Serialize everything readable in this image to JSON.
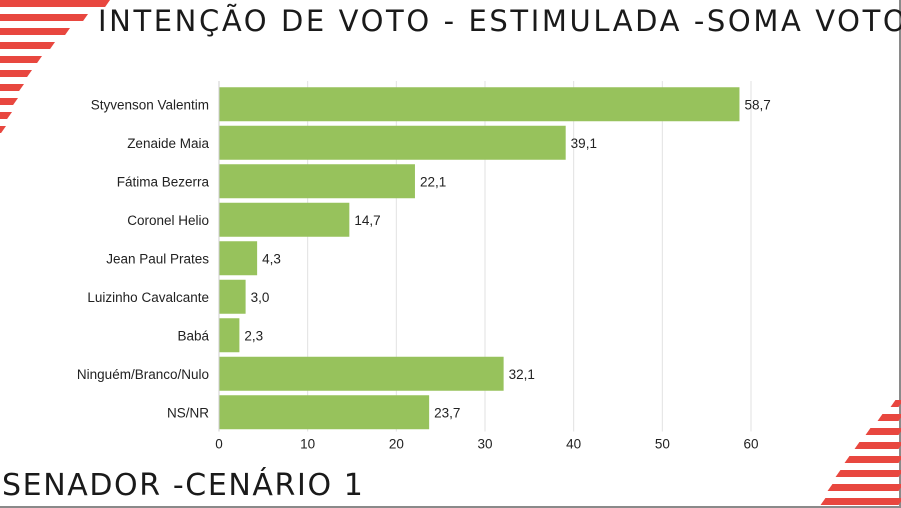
{
  "header": {
    "title": "INTENÇÃO DE VOTO - ESTIMULADA -SOMA VOTOS"
  },
  "footer": {
    "title": "SENADOR -CENÁRIO 1"
  },
  "colors": {
    "bar": "#97c25c",
    "accent": "#e8473f",
    "grid": "#e2e2e2"
  },
  "chart_data": {
    "type": "bar",
    "orientation": "horizontal",
    "title": "INTENÇÃO DE VOTO - ESTIMULADA -SOMA VOTOS",
    "xlabel": "",
    "ylabel": "",
    "xlim": [
      0,
      60
    ],
    "xticks": [
      "0",
      "10",
      "20",
      "30",
      "40",
      "50",
      "60"
    ],
    "grid": true,
    "categories": [
      "Styvenson Valentim",
      "Zenaide Maia",
      "Fátima Bezerra",
      "Coronel Helio",
      "Jean Paul Prates",
      "Luizinho Cavalcante",
      "Babá",
      "Ninguém/Branco/Nulo",
      "NS/NR"
    ],
    "values": [
      58.7,
      39.1,
      22.1,
      14.7,
      4.3,
      3.0,
      2.3,
      32.1,
      23.7
    ],
    "value_labels": [
      "58,7",
      "39,1",
      "22,1",
      "14,7",
      "4,3",
      "3,0",
      "2,3",
      "32,1",
      "23,7"
    ]
  }
}
